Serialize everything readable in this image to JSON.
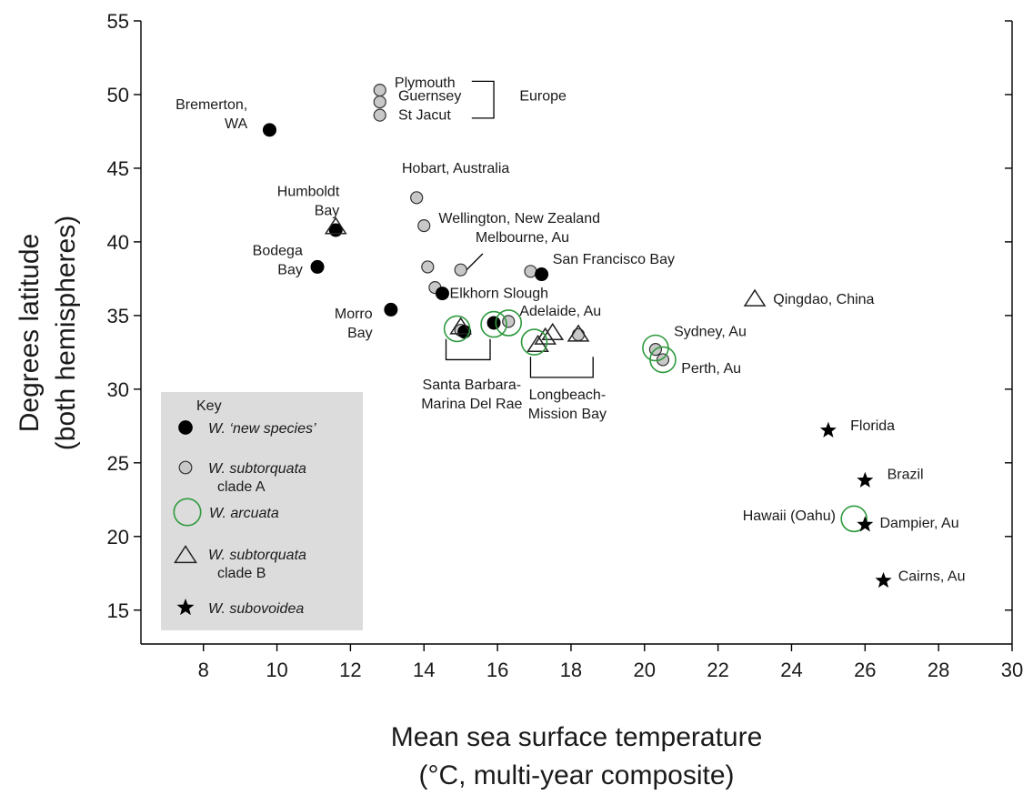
{
  "chart_data": {
    "type": "scatter",
    "xlabel": [
      "Mean sea surface temperature",
      "(°C, multi-year composite)"
    ],
    "ylabel": [
      "Degrees latitude",
      "(both hemispheres)"
    ],
    "xlim": [
      6.3,
      30
    ],
    "ylim": [
      12.7,
      55
    ],
    "xticks": [
      8,
      10,
      12,
      14,
      16,
      18,
      20,
      22,
      24,
      26,
      28,
      30
    ],
    "yticks": [
      15,
      20,
      25,
      30,
      35,
      40,
      45,
      50,
      55
    ],
    "grid": false,
    "legend_position": "bottom-left",
    "series": [
      {
        "key": "new",
        "name": "W. ‘new species’",
        "marker": "filled-circle",
        "color": "#000000",
        "points": [
          {
            "x": 9.8,
            "y": 47.6
          },
          {
            "x": 11.6,
            "y": 40.8
          },
          {
            "x": 11.1,
            "y": 38.3
          },
          {
            "x": 13.1,
            "y": 35.4
          },
          {
            "x": 14.5,
            "y": 36.5
          },
          {
            "x": 15.1,
            "y": 33.9
          },
          {
            "x": 15.9,
            "y": 34.5
          },
          {
            "x": 17.2,
            "y": 37.8
          }
        ]
      },
      {
        "key": "cladeA",
        "name": "W. subtorquata clade A",
        "marker": "gray-circle",
        "color": "#c8c8c8",
        "points": [
          {
            "x": 12.8,
            "y": 50.3
          },
          {
            "x": 12.8,
            "y": 49.5
          },
          {
            "x": 12.8,
            "y": 48.6
          },
          {
            "x": 13.8,
            "y": 43.0
          },
          {
            "x": 14.0,
            "y": 41.1
          },
          {
            "x": 14.1,
            "y": 38.3
          },
          {
            "x": 14.3,
            "y": 36.9
          },
          {
            "x": 15.0,
            "y": 38.1
          },
          {
            "x": 16.9,
            "y": 38.0
          },
          {
            "x": 16.3,
            "y": 34.6
          },
          {
            "x": 15.0,
            "y": 34.0
          },
          {
            "x": 18.2,
            "y": 33.7
          },
          {
            "x": 20.3,
            "y": 32.7
          },
          {
            "x": 20.5,
            "y": 32.0
          }
        ]
      },
      {
        "key": "arcuata",
        "name": "W. arcuata",
        "marker": "open-circle",
        "color": "#2e9a3e",
        "points": [
          {
            "x": 14.9,
            "y": 34.1
          },
          {
            "x": 15.9,
            "y": 34.4
          },
          {
            "x": 16.3,
            "y": 34.5
          },
          {
            "x": 17.0,
            "y": 33.2
          },
          {
            "x": 20.3,
            "y": 32.8
          },
          {
            "x": 20.5,
            "y": 32.0
          },
          {
            "x": 25.7,
            "y": 21.2
          }
        ]
      },
      {
        "key": "cladeB",
        "name": "W. subtorquata clade B",
        "marker": "open-triangle",
        "color": "#000000",
        "points": [
          {
            "x": 11.6,
            "y": 41.0
          },
          {
            "x": 15.0,
            "y": 34.2
          },
          {
            "x": 17.1,
            "y": 33.0
          },
          {
            "x": 17.3,
            "y": 33.5
          },
          {
            "x": 17.5,
            "y": 33.8
          },
          {
            "x": 18.2,
            "y": 33.7
          },
          {
            "x": 23.0,
            "y": 36.1
          }
        ]
      },
      {
        "key": "subovoidea",
        "name": "W. subovoidea",
        "marker": "star",
        "color": "#000000",
        "points": [
          {
            "x": 25.0,
            "y": 27.2
          },
          {
            "x": 26.0,
            "y": 23.8
          },
          {
            "x": 26.0,
            "y": 20.8
          },
          {
            "x": 26.5,
            "y": 17.0
          }
        ]
      }
    ],
    "site_labels": [
      {
        "lines": [
          "Plymouth"
        ],
        "x": 13.2,
        "y": 50.5,
        "anchor": "start"
      },
      {
        "lines": [
          "Guernsey"
        ],
        "x": 13.3,
        "y": 49.6,
        "anchor": "start"
      },
      {
        "lines": [
          "St Jacut"
        ],
        "x": 13.3,
        "y": 48.3,
        "anchor": "start"
      },
      {
        "lines": [
          "Europe"
        ],
        "x": 16.6,
        "y": 49.6,
        "anchor": "start"
      },
      {
        "lines": [
          "Bremerton,",
          "WA"
        ],
        "x": 9.2,
        "y": 49.0,
        "anchor": "end"
      },
      {
        "lines": [
          "Hobart, Australia"
        ],
        "x": 13.4,
        "y": 44.7,
        "anchor": "start"
      },
      {
        "lines": [
          "Humboldt",
          "Bay"
        ],
        "x": 11.7,
        "y": 43.1,
        "anchor": "end"
      },
      {
        "lines": [
          "Wellington, New Zealand"
        ],
        "x": 14.4,
        "y": 41.3,
        "anchor": "start"
      },
      {
        "lines": [
          "Melbourne, Au"
        ],
        "x": 15.4,
        "y": 40.0,
        "anchor": "start"
      },
      {
        "lines": [
          "Bodega",
          "Bay"
        ],
        "x": 10.7,
        "y": 39.1,
        "anchor": "end"
      },
      {
        "lines": [
          "San Francisco Bay"
        ],
        "x": 17.5,
        "y": 38.5,
        "anchor": "start"
      },
      {
        "lines": [
          "Elkhorn Slough"
        ],
        "x": 14.7,
        "y": 36.2,
        "anchor": "start"
      },
      {
        "lines": [
          "Qingdao, China"
        ],
        "x": 23.5,
        "y": 35.8,
        "anchor": "start"
      },
      {
        "lines": [
          "Morro",
          "Bay"
        ],
        "x": 12.6,
        "y": 34.8,
        "anchor": "end"
      },
      {
        "lines": [
          "Adelaide, Au"
        ],
        "x": 16.6,
        "y": 35.0,
        "anchor": "start"
      },
      {
        "lines": [
          "Sydney, Au"
        ],
        "x": 20.8,
        "y": 33.6,
        "anchor": "start"
      },
      {
        "lines": [
          "Perth, Au"
        ],
        "x": 21.0,
        "y": 31.1,
        "anchor": "start"
      },
      {
        "lines": [
          "Santa Barbara-",
          "Marina Del Rae"
        ],
        "x": 15.3,
        "y": 30.0,
        "anchor": "middle"
      },
      {
        "lines": [
          "Longbeach-",
          "Mission Bay"
        ],
        "x": 17.9,
        "y": 29.3,
        "anchor": "middle"
      },
      {
        "lines": [
          "Florida"
        ],
        "x": 25.6,
        "y": 27.2,
        "anchor": "start"
      },
      {
        "lines": [
          "Brazil"
        ],
        "x": 26.6,
        "y": 23.9,
        "anchor": "start"
      },
      {
        "lines": [
          "Hawaii (Oahu)"
        ],
        "x": 25.2,
        "y": 21.1,
        "anchor": "end"
      },
      {
        "lines": [
          "Dampier, Au"
        ],
        "x": 26.4,
        "y": 20.6,
        "anchor": "start"
      },
      {
        "lines": [
          "Cairns, Au"
        ],
        "x": 26.9,
        "y": 17.0,
        "anchor": "start"
      }
    ],
    "brackets": [
      {
        "type": "right",
        "x1": 15.3,
        "x2": 15.9,
        "y1": 48.4,
        "y2": 50.9
      },
      {
        "type": "bottom",
        "x1": 14.6,
        "x2": 15.8,
        "y1": 32.0,
        "y2": 33.4
      },
      {
        "type": "bottom",
        "x1": 16.9,
        "x2": 18.6,
        "y1": 30.8,
        "y2": 32.2
      }
    ],
    "leaders": [
      {
        "x1": 15.6,
        "y1": 39.2,
        "x2": 15.0,
        "y2": 37.7
      }
    ],
    "legend": {
      "title": "Key",
      "entries": [
        {
          "series": "new",
          "text": [
            "W. ‘new species’"
          ]
        },
        {
          "series": "cladeA",
          "text": [
            "W. subtorquata",
            "clade A"
          ]
        },
        {
          "series": "arcuata",
          "text": [
            "W. arcuata"
          ]
        },
        {
          "series": "cladeB",
          "text": [
            "W. subtorquata",
            "clade B"
          ]
        },
        {
          "series": "subovoidea",
          "text": [
            "W. subovoidea"
          ]
        }
      ]
    }
  }
}
